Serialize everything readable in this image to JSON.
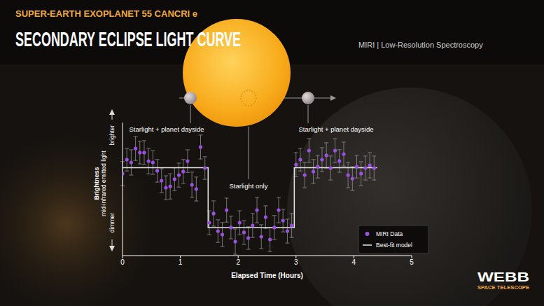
{
  "header": {
    "subtitle": "SUPER-EARTH EXOPLANET 55 CANCRI e",
    "title": "SECONDARY ECLIPSE LIGHT CURVE",
    "instrument": "MIRI | Low-Resolution Spectroscopy"
  },
  "logo": {
    "name": "WEBB",
    "tagline": "SPACE TELESCOPE"
  },
  "chart_data": {
    "type": "scatter",
    "xlabel": "Elapsed Time (Hours)",
    "ylabel": "Brightness",
    "ylabel_sub": "mid-infrared emitted light",
    "y_high_label": "brighter",
    "y_low_label": "dimmer",
    "annotations": [
      "Starlight + planet dayside",
      "Starlight only",
      "Starlight + planet dayside"
    ],
    "xlim": [
      0,
      5
    ],
    "xticks": [
      0,
      1,
      2,
      3,
      4,
      5
    ],
    "ylim": [
      0,
      100
    ],
    "tick_labels": "x",
    "legend": "lower right",
    "series": [
      {
        "name": "MIRI Data",
        "type": "scatter",
        "color": "#9b51e0",
        "marker": "circle",
        "x": [
          0,
          0.075,
          0.15,
          0.225,
          0.3,
          0.375,
          0.45,
          0.525,
          0.6,
          0.675,
          0.75,
          0.825,
          0.9,
          0.975,
          1.05,
          1.125,
          1.2,
          1.275,
          1.35,
          1.425,
          1.5,
          1.575,
          1.65,
          1.725,
          1.8,
          1.875,
          1.95,
          2.025,
          2.1,
          2.175,
          2.25,
          2.325,
          2.4,
          2.475,
          2.55,
          2.625,
          2.7,
          2.775,
          2.85,
          2.925,
          3.0,
          3.075,
          3.15,
          3.225,
          3.3,
          3.375,
          3.45,
          3.525,
          3.6,
          3.675,
          3.75,
          3.825,
          3.9,
          3.975,
          4.05,
          4.125,
          4.2,
          4.275,
          4.35
        ],
        "values": [
          61.6,
          72.1,
          70,
          80.5,
          77.4,
          77.4,
          71,
          70,
          63.7,
          56.3,
          51,
          52,
          57.4,
          60.5,
          63.2,
          71,
          53.2,
          50,
          81.6,
          65.8,
          24.7,
          31.6,
          18.4,
          15.8,
          34.2,
          21.1,
          10.5,
          24.7,
          17.4,
          13.2,
          22.6,
          34.2,
          14.2,
          28.9,
          12.1,
          21.1,
          34.2,
          26.3,
          18.4,
          22.6,
          68.4,
          72.1,
          60.5,
          78.9,
          63.2,
          66.8,
          72.1,
          75.3,
          65.8,
          78.9,
          71.1,
          76.3,
          60.5,
          57.9,
          66.8,
          61.6,
          65.8,
          67.9,
          65.8
        ],
        "errors": [
          9,
          8.5,
          9.5,
          9,
          8.5,
          9,
          9.5,
          9,
          8.5,
          9,
          9,
          9.5,
          8.5,
          9,
          9,
          8.5,
          9.5,
          9,
          9,
          8.5,
          9,
          9.5,
          8.5,
          9,
          9,
          8.5,
          9.5,
          9,
          9,
          8.5,
          9,
          9.5,
          9,
          8.5,
          9,
          9,
          9.5,
          8.5,
          9,
          9,
          9,
          8.5,
          9.5,
          9,
          9,
          8.5,
          9,
          9.5,
          9,
          9,
          8.5,
          9,
          9.5,
          9,
          8.5,
          9,
          9,
          9.5,
          9
        ]
      },
      {
        "name": "Best-fit model",
        "type": "line",
        "color": "#e6e6e6",
        "line_style": "solid",
        "x": [
          0,
          1.48,
          1.48,
          2.97,
          2.97,
          4.4
        ],
        "values": [
          66,
          66,
          21,
          21,
          66,
          66
        ]
      }
    ]
  }
}
